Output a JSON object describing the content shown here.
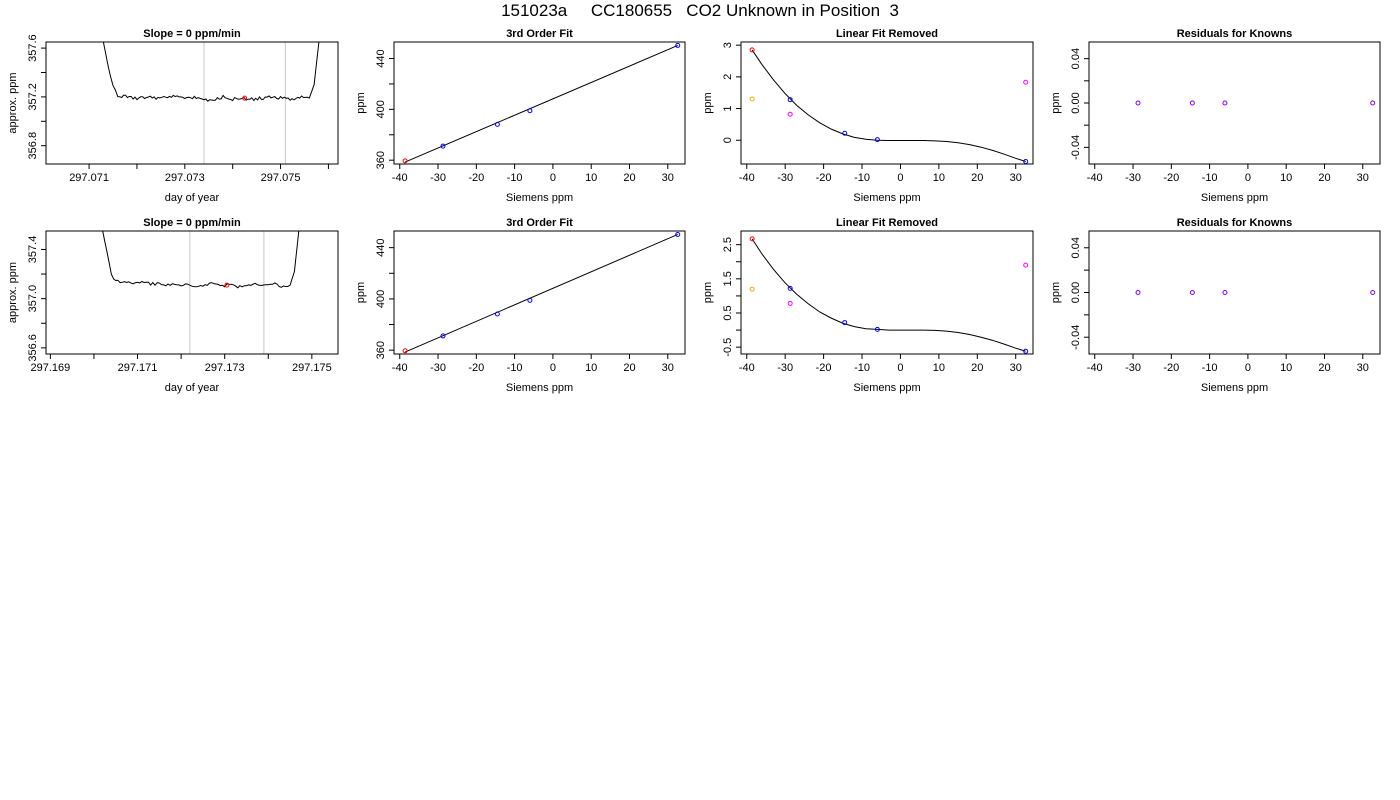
{
  "page": {
    "title": "151023a     CC180655   CO2 Unknown in Position  3"
  },
  "chart_data": [
    {
      "type": "line",
      "title": "Slope =  0  ppm/min",
      "xlabel": "day of year",
      "ylabel": "approx. ppm",
      "xlim": [
        297.0701,
        297.0762
      ],
      "ylim": [
        356.65,
        357.65
      ],
      "xticks": [
        297.071,
        297.072,
        297.073,
        297.074,
        297.075,
        297.076
      ],
      "xtick_labels": [
        "297.071",
        "",
        "297.073",
        "",
        "297.075",
        ""
      ],
      "yticks": [
        356.8,
        357.0,
        357.2,
        357.4,
        357.6
      ],
      "ytick_labels": [
        "356.8",
        "",
        "357.2",
        "",
        "357.6"
      ],
      "vlines": [
        297.0734,
        297.0751
      ],
      "x": [
        297.0713,
        297.0714,
        297.0715,
        297.0716,
        297.0718,
        297.072,
        297.0722,
        297.0724,
        297.0726,
        297.0728,
        297.073,
        297.0732,
        297.0734,
        297.0736,
        297.0738,
        297.074,
        297.0742,
        297.0744,
        297.0746,
        297.0748,
        297.075,
        297.0752,
        297.0754,
        297.0756,
        297.0757,
        297.0758
      ],
      "y": [
        357.65,
        357.45,
        357.28,
        357.21,
        357.2,
        357.19,
        357.2,
        357.19,
        357.2,
        357.2,
        357.19,
        357.2,
        357.18,
        357.17,
        357.2,
        357.18,
        357.19,
        357.18,
        357.19,
        357.2,
        357.19,
        357.18,
        357.2,
        357.19,
        357.3,
        357.65
      ],
      "marker": {
        "x": 297.07425,
        "y": 357.19,
        "color": "#ff0000"
      }
    },
    {
      "type": "scatter",
      "title": "3rd Order Fit",
      "xlabel": "Siemens ppm",
      "ylabel": "ppm",
      "xlim": [
        -41.5,
        34.5
      ],
      "ylim": [
        357,
        453
      ],
      "xticks": [
        -40,
        -30,
        -20,
        -10,
        0,
        10,
        20,
        30
      ],
      "yticks": [
        360,
        380,
        400,
        420,
        440
      ],
      "ytick_labels": [
        "360",
        "",
        "400",
        "",
        "440"
      ],
      "points": [
        {
          "x": -38.6,
          "y": 359.5,
          "color": "#ff0000"
        },
        {
          "x": -28.7,
          "y": 371.1,
          "color": "#0000ff"
        },
        {
          "x": -14.5,
          "y": 388.2,
          "color": "#0000ff"
        },
        {
          "x": -6.0,
          "y": 398.9,
          "color": "#0000ff"
        },
        {
          "x": 32.6,
          "y": 450.3,
          "color": "#0000ff"
        }
      ],
      "fit": {
        "x": [
          -38.6,
          32.6
        ],
        "y": [
          358.5,
          450.3
        ]
      }
    },
    {
      "type": "scatter",
      "title": "Linear Fit Removed",
      "xlabel": "Siemens ppm",
      "ylabel": "ppm",
      "xlim": [
        -41.5,
        34.5
      ],
      "ylim": [
        -0.75,
        3.1
      ],
      "xticks": [
        -40,
        -30,
        -20,
        -10,
        0,
        10,
        20,
        30
      ],
      "yticks": [
        0,
        1,
        2,
        3
      ],
      "ytick_labels": [
        "0",
        "1",
        "2",
        "3"
      ],
      "points": [
        {
          "x": -38.6,
          "y": 2.85,
          "color": "#ff0000"
        },
        {
          "x": -38.6,
          "y": 1.3,
          "color": "#ffa500"
        },
        {
          "x": -28.7,
          "y": 1.28,
          "color": "#0000ff"
        },
        {
          "x": -28.7,
          "y": 0.82,
          "color": "#ff00ff"
        },
        {
          "x": -14.5,
          "y": 0.22,
          "color": "#0000ff"
        },
        {
          "x": -6.0,
          "y": 0.02,
          "color": "#0000ff"
        },
        {
          "x": 32.6,
          "y": -0.67,
          "color": "#0000ff"
        },
        {
          "x": 32.6,
          "y": 1.83,
          "color": "#ff00ff"
        }
      ],
      "curve": {
        "x": [
          -38.6,
          -36,
          -33,
          -30,
          -27,
          -24,
          -21,
          -18,
          -15,
          -12,
          -9,
          -6,
          -3,
          0,
          3,
          6,
          9,
          12,
          15,
          18,
          21,
          24,
          27,
          30,
          32.6
        ],
        "y": [
          2.85,
          2.38,
          1.9,
          1.47,
          1.1,
          0.8,
          0.55,
          0.35,
          0.2,
          0.09,
          0.03,
          0.0,
          -0.01,
          -0.01,
          -0.01,
          -0.01,
          -0.02,
          -0.04,
          -0.08,
          -0.14,
          -0.22,
          -0.32,
          -0.44,
          -0.57,
          -0.67
        ]
      }
    },
    {
      "type": "scatter",
      "title": "Residuals for Knowns",
      "xlabel": "Siemens ppm",
      "ylabel": "ppm",
      "xlim": [
        -41.5,
        34.5
      ],
      "ylim": [
        -0.055,
        0.055
      ],
      "xticks": [
        -40,
        -30,
        -20,
        -10,
        0,
        10,
        20,
        30
      ],
      "yticks": [
        -0.04,
        -0.02,
        0.0,
        0.02,
        0.04
      ],
      "ytick_labels": [
        "-0.04",
        "",
        "0.00",
        "",
        "0.04"
      ],
      "points": [
        {
          "x": -28.7,
          "y": 0.0,
          "color": "#7f00ff"
        },
        {
          "x": -14.5,
          "y": 0.0,
          "color": "#7f00ff"
        },
        {
          "x": -6.0,
          "y": 0.0,
          "color": "#7f00ff"
        },
        {
          "x": 32.6,
          "y": 0.0,
          "color": "#7f00ff"
        }
      ]
    },
    {
      "type": "line",
      "title": "Slope =  0  ppm/min",
      "xlabel": "day of year",
      "ylabel": "approx. ppm",
      "xlim": [
        297.1689,
        297.1756
      ],
      "ylim": [
        356.55,
        357.55
      ],
      "xticks": [
        297.169,
        297.17,
        297.171,
        297.172,
        297.173,
        297.174,
        297.175
      ],
      "xtick_labels": [
        "297.169",
        "",
        "297.171",
        "",
        "297.173",
        "",
        "297.175"
      ],
      "yticks": [
        356.6,
        356.8,
        357.0,
        357.2,
        357.4
      ],
      "ytick_labels": [
        "356.6",
        "",
        "357.0",
        "",
        "357.4"
      ],
      "vlines": [
        297.1722,
        297.1739
      ],
      "x": [
        297.1702,
        297.1703,
        297.1704,
        297.1705,
        297.1707,
        297.1709,
        297.1711,
        297.1713,
        297.1715,
        297.1717,
        297.1719,
        297.1721,
        297.1723,
        297.1725,
        297.1727,
        297.1729,
        297.1731,
        297.1733,
        297.1735,
        297.1737,
        297.1739,
        297.1741,
        297.1743,
        297.1745,
        297.1746,
        297.1747
      ],
      "y": [
        357.55,
        357.38,
        357.2,
        357.14,
        357.13,
        357.12,
        357.13,
        357.12,
        357.12,
        357.11,
        357.12,
        357.11,
        357.1,
        357.11,
        357.12,
        357.1,
        357.11,
        357.1,
        357.11,
        357.12,
        357.11,
        357.12,
        357.1,
        357.11,
        357.22,
        357.55
      ],
      "marker": {
        "x": 297.17305,
        "y": 357.11,
        "color": "#ff0000"
      }
    },
    {
      "type": "scatter",
      "title": "3rd Order Fit",
      "xlabel": "Siemens ppm",
      "ylabel": "ppm",
      "xlim": [
        -41.5,
        34.5
      ],
      "ylim": [
        357,
        453
      ],
      "xticks": [
        -40,
        -30,
        -20,
        -10,
        0,
        10,
        20,
        30
      ],
      "yticks": [
        360,
        380,
        400,
        420,
        440
      ],
      "ytick_labels": [
        "360",
        "",
        "400",
        "",
        "440"
      ],
      "points": [
        {
          "x": -38.6,
          "y": 359.5,
          "color": "#ff0000"
        },
        {
          "x": -28.7,
          "y": 371.1,
          "color": "#0000ff"
        },
        {
          "x": -14.5,
          "y": 388.2,
          "color": "#0000ff"
        },
        {
          "x": -6.0,
          "y": 398.9,
          "color": "#0000ff"
        },
        {
          "x": 32.6,
          "y": 450.3,
          "color": "#0000ff"
        }
      ],
      "fit": {
        "x": [
          -38.6,
          32.6
        ],
        "y": [
          358.5,
          450.3
        ]
      }
    },
    {
      "type": "scatter",
      "title": "Linear Fit Removed",
      "xlabel": "Siemens ppm",
      "ylabel": "ppm",
      "xlim": [
        -41.5,
        34.5
      ],
      "ylim": [
        -0.7,
        2.9
      ],
      "xticks": [
        -40,
        -30,
        -20,
        -10,
        0,
        10,
        20,
        30
      ],
      "yticks": [
        -0.5,
        0.0,
        0.5,
        1.0,
        1.5,
        2.0,
        2.5
      ],
      "ytick_labels": [
        "-0.5",
        "",
        "0.5",
        "",
        "1.5",
        "",
        "2.5"
      ],
      "points": [
        {
          "x": -38.6,
          "y": 2.67,
          "color": "#ff0000"
        },
        {
          "x": -38.6,
          "y": 1.2,
          "color": "#ffa500"
        },
        {
          "x": -28.7,
          "y": 1.22,
          "color": "#0000ff"
        },
        {
          "x": -28.7,
          "y": 0.78,
          "color": "#ff00ff"
        },
        {
          "x": -14.5,
          "y": 0.22,
          "color": "#0000ff"
        },
        {
          "x": -6.0,
          "y": 0.02,
          "color": "#0000ff"
        },
        {
          "x": 32.6,
          "y": -0.62,
          "color": "#0000ff"
        },
        {
          "x": 32.6,
          "y": 1.9,
          "color": "#ff00ff"
        }
      ],
      "curve": {
        "x": [
          -38.6,
          -36,
          -33,
          -30,
          -27,
          -24,
          -21,
          -18,
          -15,
          -12,
          -9,
          -6,
          -3,
          0,
          3,
          6,
          9,
          12,
          15,
          18,
          21,
          24,
          27,
          30,
          32.6
        ],
        "y": [
          2.67,
          2.22,
          1.77,
          1.38,
          1.05,
          0.77,
          0.53,
          0.35,
          0.2,
          0.1,
          0.04,
          0.02,
          0.0,
          0.0,
          0.0,
          0.0,
          -0.01,
          -0.03,
          -0.07,
          -0.13,
          -0.21,
          -0.3,
          -0.41,
          -0.53,
          -0.62
        ]
      }
    },
    {
      "type": "scatter",
      "title": "Residuals for Knowns",
      "xlabel": "Siemens ppm",
      "ylabel": "ppm",
      "xlim": [
        -41.5,
        34.5
      ],
      "ylim": [
        -0.055,
        0.055
      ],
      "xticks": [
        -40,
        -30,
        -20,
        -10,
        0,
        10,
        20,
        30
      ],
      "yticks": [
        -0.04,
        -0.02,
        0.0,
        0.02,
        0.04
      ],
      "ytick_labels": [
        "-0.04",
        "",
        "0.00",
        "",
        "0.04"
      ],
      "points": [
        {
          "x": -28.7,
          "y": 0.0,
          "color": "#7f00ff"
        },
        {
          "x": -14.5,
          "y": 0.0,
          "color": "#7f00ff"
        },
        {
          "x": -6.0,
          "y": 0.0,
          "color": "#7f00ff"
        },
        {
          "x": 32.6,
          "y": 0.0,
          "color": "#7f00ff"
        }
      ]
    }
  ]
}
